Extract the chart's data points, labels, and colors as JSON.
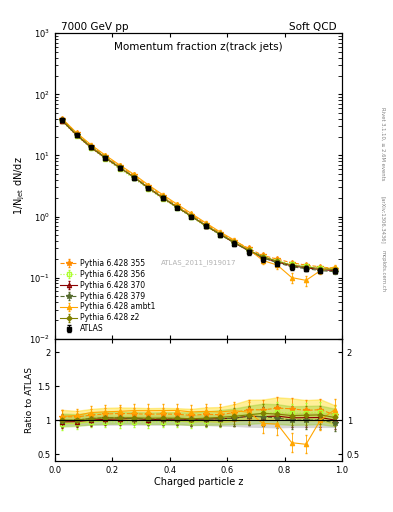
{
  "title": "Momentum fraction z(track jets)",
  "top_left_label": "7000 GeV pp",
  "top_right_label": "Soft QCD",
  "ylabel_main": "1/N$_{\\rm jet}$ dN/dz",
  "ylabel_ratio": "Ratio to ATLAS",
  "xlabel": "Charged particle z",
  "watermark": "ATLAS_2011_I919017",
  "rivet_label": "Rivet 3.1.10, ≥ 2.6M events",
  "arxiv_label": "[arXiv:1306.3436]",
  "mcplots_label": "mcplots.cern.ch",
  "ylim_main": [
    0.01,
    1000
  ],
  "ylim_ratio": [
    0.4,
    2.2
  ],
  "xlim": [
    0.0,
    1.0
  ],
  "z_values": [
    0.025,
    0.075,
    0.125,
    0.175,
    0.225,
    0.275,
    0.325,
    0.375,
    0.425,
    0.475,
    0.525,
    0.575,
    0.625,
    0.675,
    0.725,
    0.775,
    0.825,
    0.875,
    0.925,
    0.975
  ],
  "ATLAS_y": [
    38.0,
    22.0,
    13.5,
    9.0,
    6.2,
    4.3,
    2.9,
    2.0,
    1.4,
    1.0,
    0.7,
    0.5,
    0.36,
    0.26,
    0.2,
    0.17,
    0.15,
    0.14,
    0.13,
    0.13
  ],
  "ATLAS_yerr": [
    3.0,
    1.5,
    0.9,
    0.6,
    0.4,
    0.28,
    0.19,
    0.13,
    0.09,
    0.07,
    0.05,
    0.04,
    0.03,
    0.025,
    0.02,
    0.018,
    0.015,
    0.014,
    0.013,
    0.013
  ],
  "py355_y": [
    40.0,
    23.0,
    14.5,
    9.8,
    6.8,
    4.7,
    3.15,
    2.18,
    1.52,
    1.07,
    0.76,
    0.54,
    0.4,
    0.3,
    0.23,
    0.2,
    0.175,
    0.16,
    0.15,
    0.14
  ],
  "py355_yerr": [
    2.0,
    1.2,
    0.75,
    0.5,
    0.34,
    0.24,
    0.16,
    0.11,
    0.08,
    0.06,
    0.045,
    0.036,
    0.03,
    0.025,
    0.02,
    0.017,
    0.015,
    0.014,
    0.013,
    0.012
  ],
  "py355_color": "#FF8C00",
  "py355_marker": "*",
  "py355_linestyle": "--",
  "py356_y": [
    36.0,
    21.0,
    13.2,
    8.8,
    6.0,
    4.2,
    2.8,
    1.95,
    1.38,
    0.98,
    0.69,
    0.5,
    0.37,
    0.28,
    0.22,
    0.19,
    0.165,
    0.155,
    0.145,
    0.14
  ],
  "py356_yerr": [
    2.0,
    1.2,
    0.75,
    0.48,
    0.32,
    0.23,
    0.15,
    0.11,
    0.08,
    0.06,
    0.044,
    0.034,
    0.027,
    0.022,
    0.018,
    0.016,
    0.014,
    0.013,
    0.012,
    0.011
  ],
  "py356_color": "#ADFF2F",
  "py356_marker": "s",
  "py356_linestyle": ":",
  "py370_y": [
    37.0,
    21.5,
    13.5,
    9.1,
    6.3,
    4.4,
    2.92,
    2.02,
    1.42,
    1.01,
    0.71,
    0.51,
    0.37,
    0.275,
    0.21,
    0.18,
    0.155,
    0.145,
    0.135,
    0.13
  ],
  "py370_yerr": [
    2.0,
    1.2,
    0.75,
    0.49,
    0.33,
    0.23,
    0.15,
    0.11,
    0.08,
    0.06,
    0.044,
    0.034,
    0.027,
    0.022,
    0.018,
    0.015,
    0.013,
    0.012,
    0.011,
    0.01
  ],
  "py370_color": "#8B0000",
  "py370_marker": "^",
  "py370_linestyle": "-",
  "py379_y": [
    37.5,
    22.0,
    13.8,
    9.3,
    6.4,
    4.4,
    2.95,
    2.04,
    1.43,
    1.01,
    0.71,
    0.51,
    0.37,
    0.275,
    0.21,
    0.175,
    0.15,
    0.14,
    0.13,
    0.125
  ],
  "py379_yerr": [
    2.0,
    1.2,
    0.75,
    0.49,
    0.33,
    0.23,
    0.15,
    0.11,
    0.08,
    0.06,
    0.044,
    0.034,
    0.027,
    0.022,
    0.018,
    0.015,
    0.013,
    0.012,
    0.011,
    0.01
  ],
  "py379_color": "#556B2F",
  "py379_marker": "*",
  "py379_linestyle": "--",
  "pyambt1_y": [
    40.0,
    23.5,
    15.0,
    10.1,
    7.0,
    4.9,
    3.3,
    2.28,
    1.6,
    1.12,
    0.79,
    0.56,
    0.41,
    0.29,
    0.19,
    0.16,
    0.1,
    0.09,
    0.13,
    0.15
  ],
  "pyambt1_yerr": [
    2.2,
    1.3,
    0.8,
    0.52,
    0.36,
    0.25,
    0.17,
    0.12,
    0.09,
    0.07,
    0.05,
    0.04,
    0.032,
    0.026,
    0.022,
    0.02,
    0.018,
    0.016,
    0.014,
    0.013
  ],
  "pyambt1_color": "#FFA500",
  "pyambt1_marker": "^",
  "pyambt1_linestyle": "-",
  "pyz2_y": [
    38.0,
    22.0,
    13.8,
    9.3,
    6.4,
    4.45,
    2.98,
    2.06,
    1.44,
    1.02,
    0.72,
    0.52,
    0.38,
    0.28,
    0.22,
    0.185,
    0.16,
    0.15,
    0.14,
    0.135
  ],
  "pyz2_yerr": [
    2.0,
    1.2,
    0.75,
    0.49,
    0.33,
    0.23,
    0.15,
    0.11,
    0.08,
    0.06,
    0.044,
    0.034,
    0.027,
    0.022,
    0.018,
    0.015,
    0.013,
    0.012,
    0.011,
    0.01
  ],
  "pyz2_color": "#808000",
  "pyz2_marker": "D",
  "pyz2_linestyle": "-",
  "atlas_band_color": "#d3d3d3",
  "py355_band_color": "#FFD700",
  "pyz2_band_color": "#9ACD32"
}
